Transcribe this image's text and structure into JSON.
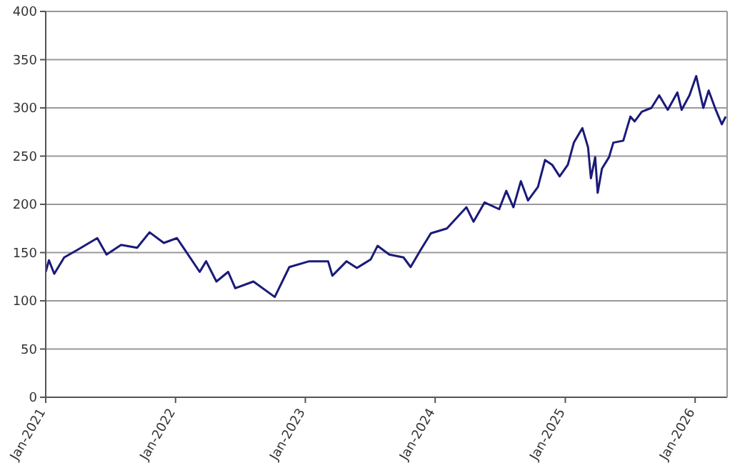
{
  "chart_data": {
    "type": "line",
    "x": [
      "2021-01-01",
      "2021-01-10",
      "2021-01-25",
      "2021-02-22",
      "2021-04-01",
      "2021-05-26",
      "2021-06-21",
      "2021-08-01",
      "2021-09-15",
      "2021-10-20",
      "2021-11-29",
      "2022-01-05",
      "2022-03-10",
      "2022-03-28",
      "2022-04-26",
      "2022-05-29",
      "2022-06-18",
      "2022-08-08",
      "2022-10-07",
      "2022-11-17",
      "2023-01-12",
      "2023-03-06",
      "2023-03-18",
      "2023-04-27",
      "2023-05-26",
      "2023-07-04",
      "2023-07-23",
      "2023-08-25",
      "2023-10-04",
      "2023-10-24",
      "2023-11-20",
      "2023-12-20",
      "2024-02-03",
      "2024-03-29",
      "2024-04-18",
      "2024-05-19",
      "2024-06-29",
      "2024-07-19",
      "2024-08-08",
      "2024-08-29",
      "2024-09-18",
      "2024-10-16",
      "2024-11-05",
      "2024-11-25",
      "2024-12-16",
      "2025-01-08",
      "2025-01-25",
      "2025-02-18",
      "2025-03-06",
      "2025-03-14",
      "2025-03-26",
      "2025-04-02",
      "2025-04-14",
      "2025-05-04",
      "2025-05-16",
      "2025-06-13",
      "2025-07-03",
      "2025-07-15",
      "2025-08-04",
      "2025-08-31",
      "2025-09-22",
      "2025-10-16",
      "2025-11-12",
      "2025-11-24",
      "2025-12-16",
      "2026-01-04",
      "2026-01-24",
      "2026-02-08",
      "2026-02-28",
      "2026-03-17",
      "2026-03-28"
    ],
    "series": [
      {
        "color": "#1a1a7a",
        "values": [
          130,
          142,
          128,
          145,
          153,
          165,
          148,
          158,
          155,
          171,
          160,
          165,
          130,
          141,
          120,
          130,
          113,
          120,
          104,
          135,
          141,
          141,
          126,
          141,
          134,
          143,
          157,
          148,
          145,
          135,
          152,
          170,
          175,
          197,
          182,
          202,
          195,
          214,
          197,
          224,
          204,
          218,
          246,
          241,
          229,
          241,
          264,
          279,
          259,
          227,
          249,
          212,
          237,
          249,
          264,
          266,
          291,
          286,
          296,
          300,
          313,
          298,
          316,
          298,
          313,
          333,
          300,
          318,
          298,
          283,
          291
        ]
      }
    ],
    "xlim": [
      "2021-01-01",
      "2026-04-01"
    ],
    "xticks": [
      {
        "value": "2021-01",
        "label": "Jan-2021"
      },
      {
        "value": "2022-01",
        "label": "Jan-2022"
      },
      {
        "value": "2023-01",
        "label": "Jan-2023"
      },
      {
        "value": "2024-01",
        "label": "Jan-2024"
      },
      {
        "value": "2025-01",
        "label": "Jan-2025"
      },
      {
        "value": "2026-01",
        "label": "Jan-2026"
      }
    ],
    "ylim": [
      0,
      400
    ],
    "yticks": [
      0,
      50,
      100,
      150,
      200,
      250,
      300,
      350,
      400
    ],
    "grid": "y"
  }
}
